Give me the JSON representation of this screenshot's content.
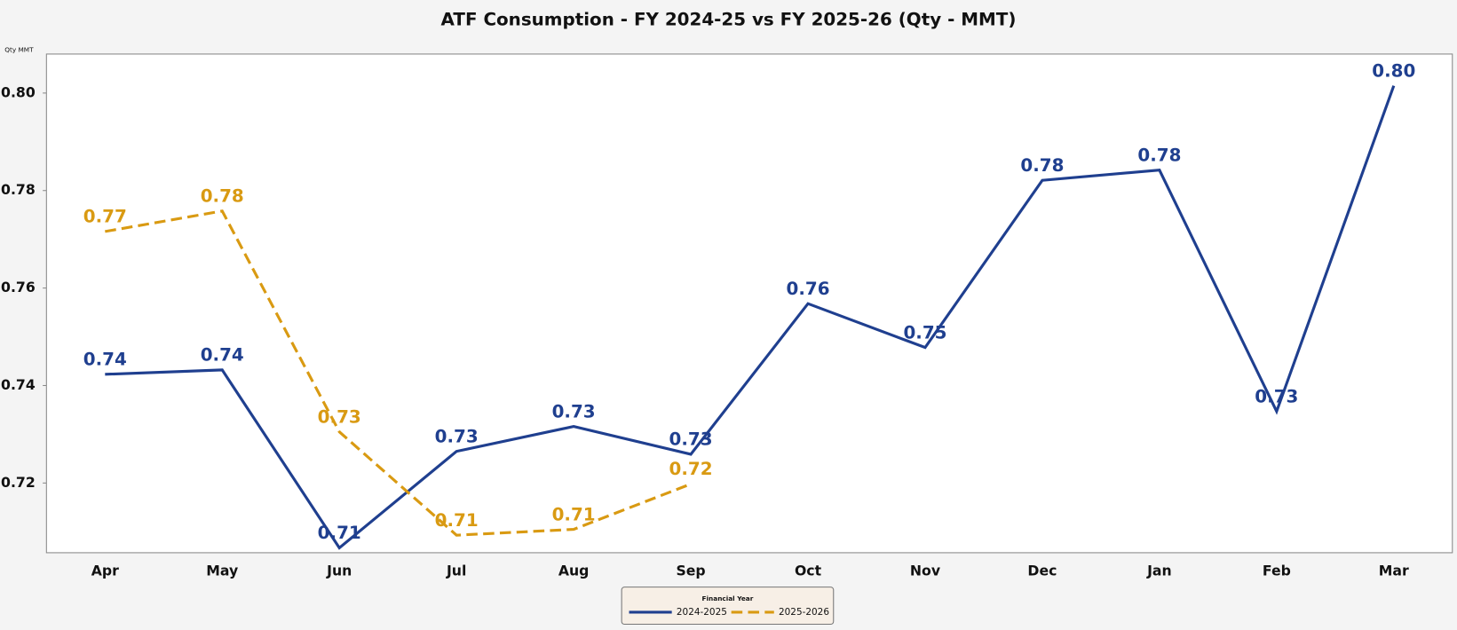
{
  "chart_data": {
    "type": "line",
    "title": "ATF Consumption - FY 2024-25 vs FY 2025-26 (Qty - MMT)",
    "y_label": "Qty MMT",
    "categories": [
      "Apr",
      "May",
      "Jun",
      "Jul",
      "Aug",
      "Sep",
      "Oct",
      "Nov",
      "Dec",
      "Jan",
      "Feb",
      "Mar"
    ],
    "series": [
      {
        "name": "2024-2025",
        "color": "#1f3f8f",
        "line_style": "solid",
        "values": [
          0.7423,
          0.7432,
          0.7067,
          0.7265,
          0.7316,
          0.7259,
          0.7568,
          0.7478,
          0.7821,
          0.7842,
          0.7347,
          0.8015
        ],
        "value_labels": [
          "0.74",
          "0.74",
          "0.71",
          "0.73",
          "0.73",
          "0.73",
          "0.76",
          "0.75",
          "0.78",
          "0.78",
          "0.73",
          "0.80"
        ]
      },
      {
        "name": "2025-2026",
        "color": "#d99a12",
        "line_style": "dashed",
        "values": [
          0.7716,
          0.7758,
          0.7305,
          0.7093,
          0.7105,
          0.7198,
          null,
          null,
          null,
          null,
          null,
          null
        ],
        "value_labels": [
          "0.77",
          "0.78",
          "0.73",
          "0.71",
          "0.71",
          "0.72",
          null,
          null,
          null,
          null,
          null,
          null
        ]
      }
    ],
    "ylim": [
      0.7057,
      0.808
    ],
    "yticks": [
      0.72,
      0.74,
      0.76,
      0.78,
      {
        "value": 0.8,
        "label": "0.80"
      }
    ],
    "legend_title": "Financial Year",
    "legend": "bottom",
    "grid": false
  }
}
